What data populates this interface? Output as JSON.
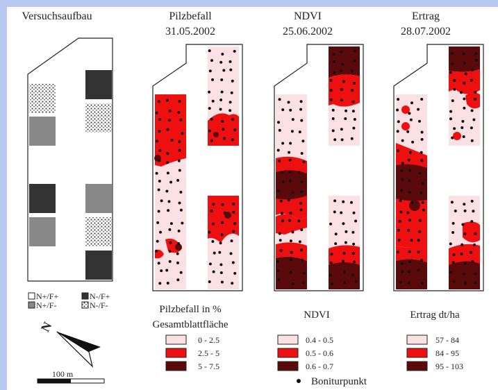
{
  "panels": [
    {
      "title": "Versuchsaufbau",
      "date": ""
    },
    {
      "title": "Pilzbefall",
      "date": "31.05.2002"
    },
    {
      "title": "NDVI",
      "date": "25.06.2002"
    },
    {
      "title": "Ertrag",
      "date": "28.07.2002"
    }
  ],
  "setup_legend": [
    {
      "label": "N+/F+",
      "fill": "white"
    },
    {
      "label": "N-/F+",
      "fill": "dark"
    },
    {
      "label": "N+/F-",
      "fill": "grey"
    },
    {
      "label": "N-/F-",
      "fill": "pattern"
    }
  ],
  "colors": {
    "light": "#fbe0e4",
    "mid": "#ee1010",
    "dark": "#5a0a0a",
    "dark_plot": "#333333",
    "grey_plot": "#888888",
    "frame": "#b8c8ee"
  },
  "legends": [
    {
      "title_line1": "Pilzbefall in %",
      "title_line2": "Gesamtblattfläche",
      "classes": [
        "0 - 2.5",
        "2.5 - 5",
        "5 - 7.5"
      ]
    },
    {
      "title_line1": "NDVI",
      "title_line2": "",
      "classes": [
        "0.4 - 0.5",
        "0.5 - 0.6",
        "0.6 - 0.7"
      ]
    },
    {
      "title_line1": "Ertrag dt/ha",
      "title_line2": "",
      "classes": [
        "57 - 84",
        "84 - 95",
        "95 - 103"
      ]
    }
  ],
  "point_legend": "Boniturpunkt",
  "north_label": "N",
  "scale_label": "100 m"
}
